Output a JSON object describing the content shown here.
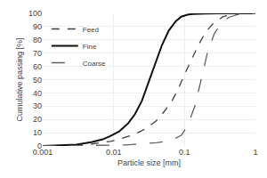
{
  "chart_data": {
    "type": "line",
    "xlabel": "Particle size [mm]",
    "ylabel": "Cumulative passing [%]",
    "log": "x",
    "xlim": [
      0.001,
      1
    ],
    "xticks": [
      0.001,
      0.01,
      0.1,
      1
    ],
    "ylim": [
      0,
      100
    ],
    "yticks": [
      0,
      10,
      20,
      30,
      40,
      50,
      60,
      70,
      80,
      90,
      100
    ],
    "grid": true,
    "legend": "upper left",
    "series": [
      {
        "name": "Feed",
        "color": "#404040",
        "line_style": "dashed",
        "x": [
          0.001,
          0.003,
          0.005,
          0.007,
          0.009,
          0.012,
          0.016,
          0.02,
          0.025,
          0.03,
          0.04,
          0.05,
          0.065,
          0.08,
          0.1,
          0.13,
          0.16,
          0.2,
          0.25,
          0.35,
          0.5,
          1.0
        ],
        "values": [
          0.0,
          0.5,
          1.5,
          2.5,
          3.5,
          5.0,
          7.0,
          9.0,
          11.5,
          14.0,
          19.0,
          25.0,
          33.0,
          42.0,
          54.0,
          67.0,
          77.0,
          86.0,
          92.0,
          97.5,
          99.5,
          100.0
        ]
      },
      {
        "name": "Fine",
        "color": "#101010",
        "line_style": "solid",
        "x": [
          0.001,
          0.003,
          0.005,
          0.007,
          0.009,
          0.012,
          0.016,
          0.02,
          0.025,
          0.03,
          0.038,
          0.048,
          0.06,
          0.075,
          0.09,
          0.11,
          0.13,
          0.16,
          0.2,
          0.3,
          1.0
        ],
        "values": [
          0.0,
          1.0,
          3.0,
          5.0,
          7.5,
          11.0,
          17.0,
          24.0,
          34.0,
          46.0,
          62.0,
          76.0,
          87.0,
          94.0,
          97.5,
          99.0,
          99.5,
          99.8,
          99.9,
          100.0,
          100.0
        ]
      },
      {
        "name": "Coarse",
        "color": "#606060",
        "line_style": "longdash",
        "x": [
          0.001,
          0.005,
          0.01,
          0.015,
          0.02,
          0.03,
          0.04,
          0.055,
          0.07,
          0.09,
          0.11,
          0.14,
          0.17,
          0.21,
          0.26,
          0.32,
          0.42,
          0.6,
          1.0
        ],
        "values": [
          0.0,
          0.3,
          0.5,
          0.8,
          1.2,
          1.8,
          2.5,
          3.5,
          5.0,
          8.0,
          15.0,
          30.0,
          50.0,
          70.0,
          84.0,
          92.0,
          97.0,
          99.5,
          100.0
        ]
      }
    ]
  }
}
